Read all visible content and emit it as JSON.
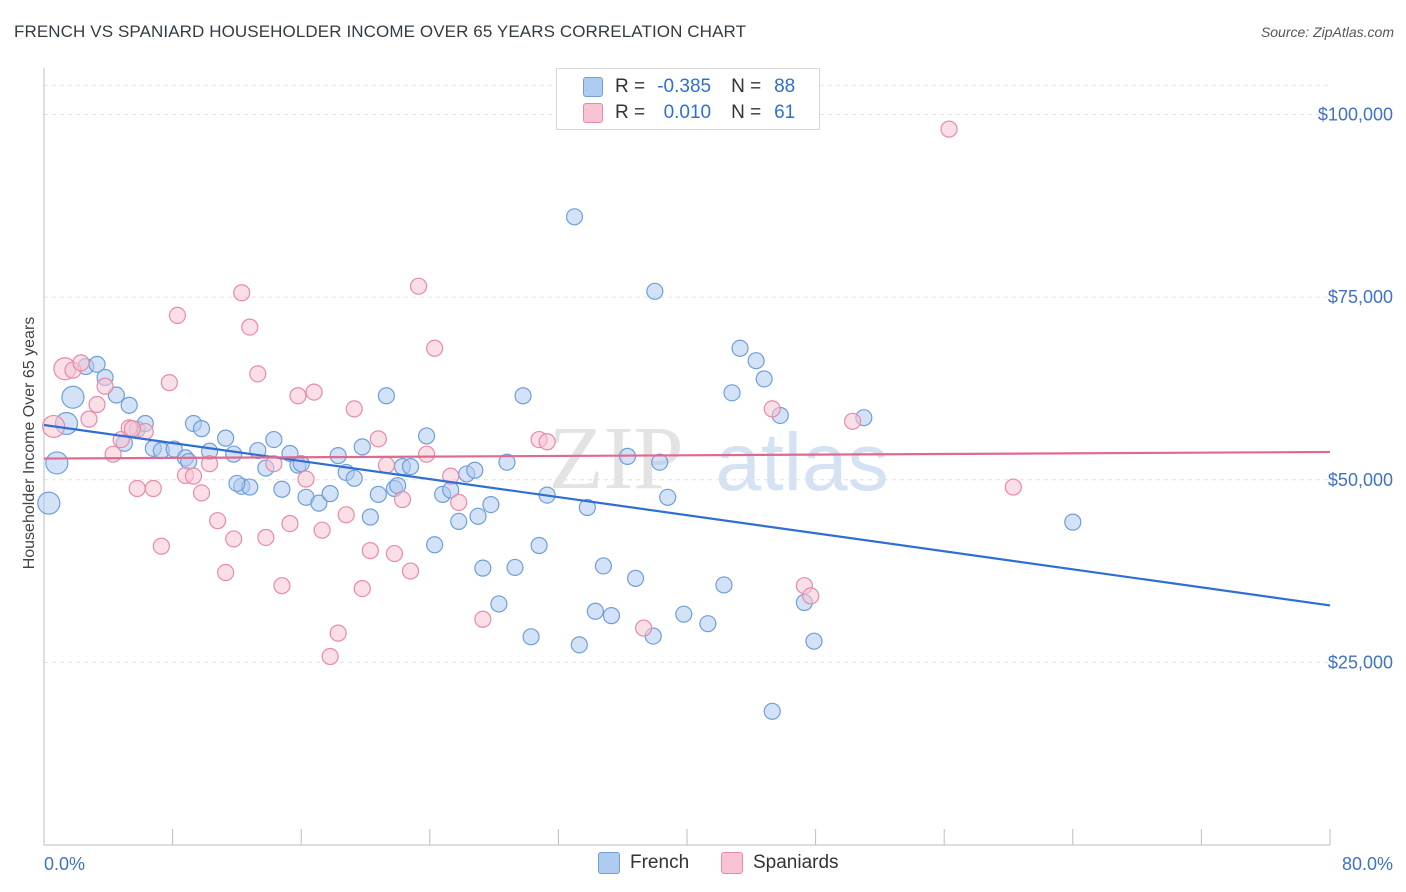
{
  "header": {
    "title": "FRENCH VS SPANIARD HOUSEHOLDER INCOME OVER 65 YEARS CORRELATION CHART",
    "source": "Source: ZipAtlas.com"
  },
  "watermark": "ZIPatlas",
  "legend": {
    "rows": [
      {
        "r_label": "R =",
        "r_value": "-0.385",
        "n_label": "N =",
        "n_value": "88",
        "color": "#aecbf0",
        "border": "#6f9fd8"
      },
      {
        "r_label": "R =",
        "r_value": "0.010",
        "n_label": "N =",
        "n_value": "61",
        "color": "#f8c4d4",
        "border": "#e88aa8"
      }
    ]
  },
  "bottom_legend": {
    "items": [
      {
        "label": "French",
        "color": "#aecbf0",
        "border": "#6f9fd8"
      },
      {
        "label": "Spaniards",
        "color": "#f8c4d4",
        "border": "#e88aa8"
      }
    ]
  },
  "chart_data": {
    "type": "scatter",
    "ylabel": "Householder Income Over 65 years",
    "xlim": [
      0,
      80
    ],
    "ylim": [
      0,
      105000
    ],
    "x_ticks": [
      "0.0%",
      "80.0%"
    ],
    "y_ticks": [
      {
        "value": 100000,
        "label": "$100,000"
      },
      {
        "value": 75000,
        "label": "$75,000"
      },
      {
        "value": 50000,
        "label": "$50,000"
      },
      {
        "value": 25000,
        "label": "$25,000"
      }
    ],
    "grid": "horizontal dashed",
    "series": [
      {
        "name": "French",
        "color": "#6f9fd8",
        "fill": "#aecbf0",
        "line_color": "#2f6fd1",
        "trend": {
          "x": [
            0,
            80
          ],
          "y": [
            57500,
            32800
          ]
        },
        "points": [
          [
            0.3,
            46800
          ],
          [
            0.8,
            52300
          ],
          [
            1.4,
            57700
          ],
          [
            1.8,
            61300
          ],
          [
            2.6,
            65500
          ],
          [
            3.3,
            65800
          ],
          [
            3.8,
            64000
          ],
          [
            4.5,
            61600
          ],
          [
            5.3,
            60200
          ],
          [
            5.8,
            56900
          ],
          [
            6.3,
            57700
          ],
          [
            6.8,
            54300
          ],
          [
            7.3,
            54000
          ],
          [
            8.1,
            54200
          ],
          [
            8.8,
            53000
          ],
          [
            9.3,
            57700
          ],
          [
            9.8,
            57000
          ],
          [
            10.3,
            53900
          ],
          [
            11.3,
            55700
          ],
          [
            11.8,
            53500
          ],
          [
            12.3,
            49100
          ],
          [
            12.8,
            49000
          ],
          [
            13.3,
            54000
          ],
          [
            13.8,
            51600
          ],
          [
            14.3,
            55500
          ],
          [
            14.8,
            48700
          ],
          [
            15.3,
            53600
          ],
          [
            15.8,
            52000
          ],
          [
            16.3,
            47600
          ],
          [
            17.1,
            46800
          ],
          [
            17.8,
            48100
          ],
          [
            18.3,
            53300
          ],
          [
            18.8,
            51000
          ],
          [
            19.3,
            50200
          ],
          [
            19.8,
            54500
          ],
          [
            20.3,
            44900
          ],
          [
            20.8,
            48000
          ],
          [
            21.3,
            61500
          ],
          [
            21.8,
            48800
          ],
          [
            22.3,
            51800
          ],
          [
            22.8,
            51800
          ],
          [
            23.8,
            56000
          ],
          [
            24.3,
            41100
          ],
          [
            24.8,
            48000
          ],
          [
            25.3,
            48600
          ],
          [
            25.8,
            44300
          ],
          [
            26.3,
            50800
          ],
          [
            26.8,
            51300
          ],
          [
            27.3,
            37900
          ],
          [
            27.8,
            46600
          ],
          [
            28.3,
            33000
          ],
          [
            28.8,
            52400
          ],
          [
            29.3,
            38000
          ],
          [
            29.8,
            61500
          ],
          [
            30.3,
            28500
          ],
          [
            30.8,
            41000
          ],
          [
            31.3,
            47900
          ],
          [
            33.0,
            86000
          ],
          [
            33.3,
            27400
          ],
          [
            33.8,
            46200
          ],
          [
            34.3,
            32000
          ],
          [
            34.8,
            38200
          ],
          [
            35.3,
            31400
          ],
          [
            36.3,
            53200
          ],
          [
            36.8,
            36500
          ],
          [
            37.9,
            28600
          ],
          [
            38.3,
            52400
          ],
          [
            38.8,
            47600
          ],
          [
            38.0,
            75800
          ],
          [
            39.8,
            31600
          ],
          [
            41.3,
            30300
          ],
          [
            42.3,
            35600
          ],
          [
            42.8,
            61900
          ],
          [
            43.3,
            68000
          ],
          [
            44.3,
            66300
          ],
          [
            44.8,
            63800
          ],
          [
            45.3,
            18300
          ],
          [
            45.8,
            58800
          ],
          [
            47.3,
            33200
          ],
          [
            47.9,
            27900
          ],
          [
            51.0,
            58500
          ],
          [
            64.0,
            44200
          ],
          [
            9.0,
            52500
          ],
          [
            5.0,
            55000
          ],
          [
            12.0,
            49500
          ],
          [
            16.0,
            52200
          ],
          [
            22.0,
            49200
          ],
          [
            27.0,
            45000
          ]
        ]
      },
      {
        "name": "Spaniards",
        "color": "#e88aa8",
        "fill": "#f8c4d4",
        "line_color": "#e0698f",
        "trend": {
          "x": [
            0,
            80
          ],
          "y": [
            52900,
            53800
          ]
        },
        "points": [
          [
            0.6,
            57300
          ],
          [
            1.3,
            65200
          ],
          [
            1.8,
            65000
          ],
          [
            2.3,
            66000
          ],
          [
            2.8,
            58300
          ],
          [
            3.3,
            60300
          ],
          [
            3.8,
            62800
          ],
          [
            4.3,
            53500
          ],
          [
            4.8,
            55500
          ],
          [
            5.3,
            57100
          ],
          [
            5.8,
            48800
          ],
          [
            6.3,
            56600
          ],
          [
            6.8,
            48800
          ],
          [
            7.3,
            40900
          ],
          [
            7.8,
            63300
          ],
          [
            8.3,
            72500
          ],
          [
            8.8,
            50600
          ],
          [
            9.3,
            50500
          ],
          [
            9.8,
            48200
          ],
          [
            10.3,
            52200
          ],
          [
            10.8,
            44400
          ],
          [
            11.3,
            37300
          ],
          [
            11.8,
            41900
          ],
          [
            12.3,
            75600
          ],
          [
            12.8,
            70900
          ],
          [
            13.3,
            64500
          ],
          [
            13.8,
            42100
          ],
          [
            14.3,
            52200
          ],
          [
            14.8,
            35500
          ],
          [
            15.3,
            44000
          ],
          [
            15.8,
            61500
          ],
          [
            16.3,
            50100
          ],
          [
            16.8,
            62000
          ],
          [
            17.3,
            43100
          ],
          [
            17.8,
            25800
          ],
          [
            18.3,
            29000
          ],
          [
            18.8,
            45200
          ],
          [
            19.3,
            59700
          ],
          [
            19.8,
            35100
          ],
          [
            20.3,
            40300
          ],
          [
            20.8,
            55600
          ],
          [
            21.3,
            52000
          ],
          [
            21.8,
            39900
          ],
          [
            22.3,
            47300
          ],
          [
            22.8,
            37500
          ],
          [
            23.3,
            76500
          ],
          [
            23.8,
            53500
          ],
          [
            24.3,
            68000
          ],
          [
            25.3,
            50500
          ],
          [
            25.8,
            46900
          ],
          [
            27.3,
            30900
          ],
          [
            30.8,
            55500
          ],
          [
            31.3,
            55200
          ],
          [
            37.3,
            29700
          ],
          [
            45.3,
            59700
          ],
          [
            47.3,
            35500
          ],
          [
            47.7,
            34100
          ],
          [
            50.3,
            58000
          ],
          [
            56.3,
            98000
          ],
          [
            60.3,
            49000
          ],
          [
            5.5,
            57000
          ]
        ]
      }
    ]
  }
}
